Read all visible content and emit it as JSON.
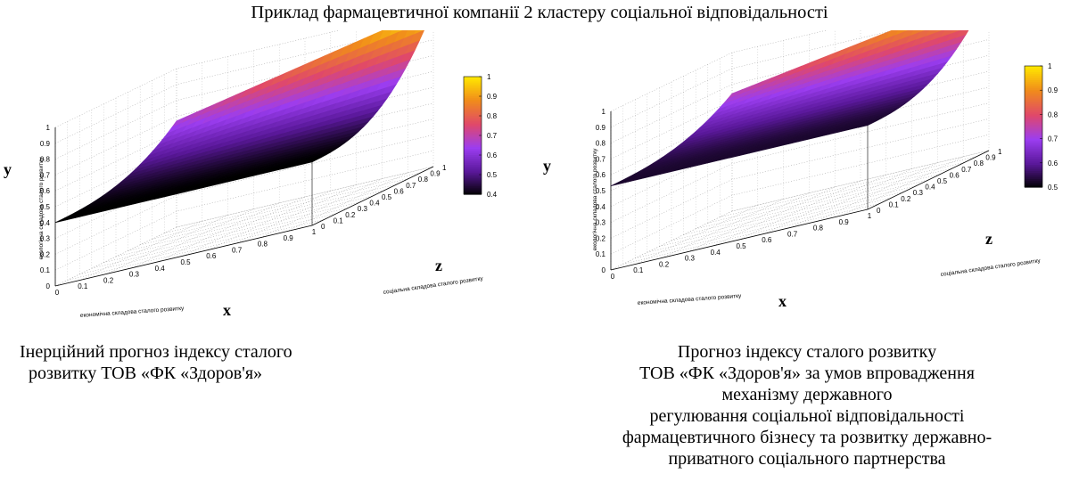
{
  "header": {
    "title": "Приклад фармацевтичної компанії 2 кластеру соціальної відповідальності"
  },
  "charts": [
    {
      "caption": [
        "Інерційний прогноз індексу сталого",
        "розвитку ТОВ «ФК «Здоров'я»"
      ]
    },
    {
      "caption": [
        "Прогноз індексу сталого розвитку",
        "ТОВ «ФК «Здоров'я» за умов впровадження",
        "механізму державного",
        "регулювання соціальної відповідальності",
        "фармацевтичного бізнесу та розвитку державно-",
        "приватного соціального партнерства"
      ]
    }
  ],
  "chart_data": [
    {
      "type": "surface",
      "axes": {
        "x": {
          "name": "x",
          "label": "економічна складова сталого розвитку",
          "ticks": [
            "0",
            "0.1",
            "0.2",
            "0.3",
            "0.4",
            "0.5",
            "0.6",
            "0.7",
            "0.8",
            "0.9",
            "1"
          ],
          "range": [
            0,
            1
          ]
        },
        "z": {
          "name": "z",
          "label": "соціальна складова сталого розвитку",
          "ticks": [
            "0",
            "0.1",
            "0.2",
            "0.3",
            "0.4",
            "0.5",
            "0.6",
            "0.7",
            "0.8",
            "0.9",
            "1"
          ],
          "range": [
            0,
            1
          ]
        },
        "y": {
          "name": "y",
          "label": "екологічна складова сталого розвитку",
          "ticks": [
            "0",
            "0.1",
            "0.2",
            "0.3",
            "0.4",
            "0.5",
            "0.6",
            "0.7",
            "0.8",
            "0.9",
            "1"
          ],
          "range": [
            0,
            1
          ]
        }
      },
      "surface": {
        "base_value": 0.4,
        "max_value": 1.0
      },
      "colorbar": {
        "ticks": [
          "1",
          "0.9",
          "0.8",
          "0.7",
          "0.6",
          "0.5",
          "0.4"
        ],
        "range": [
          0.4,
          1.0
        ]
      },
      "colormap": [
        "#000000",
        "#5a189a",
        "#9b3df0",
        "#e0486a",
        "#f08a1c",
        "#ffe600"
      ]
    },
    {
      "type": "surface",
      "axes": {
        "x": {
          "name": "x",
          "label": "економічна складова сталого розвитку",
          "ticks": [
            "0",
            "0.1",
            "0.2",
            "0.3",
            "0.4",
            "0.5",
            "0.6",
            "0.7",
            "0.8",
            "0.9",
            "1"
          ],
          "range": [
            0,
            1
          ]
        },
        "z": {
          "name": "z",
          "label": "соціальна складова сталого розвитку",
          "ticks": [
            "0",
            "0.1",
            "0.2",
            "0.3",
            "0.4",
            "0.5",
            "0.6",
            "0.7",
            "0.8",
            "0.9",
            "1"
          ],
          "range": [
            0,
            1
          ]
        },
        "y": {
          "name": "y",
          "label": "екологічна складова сталого розвитку",
          "ticks": [
            "0",
            "0.1",
            "0.2",
            "0.3",
            "0.4",
            "0.5",
            "0.6",
            "0.7",
            "0.8",
            "0.9",
            "1"
          ],
          "range": [
            0,
            1
          ]
        }
      },
      "surface": {
        "base_value": 0.53,
        "max_value": 1.0
      },
      "colorbar": {
        "ticks": [
          "1",
          "0.9",
          "0.8",
          "0.7",
          "0.6",
          "0.5"
        ],
        "range": [
          0.5,
          1.0
        ]
      },
      "colormap": [
        "#000000",
        "#5a189a",
        "#9b3df0",
        "#e0486a",
        "#f08a1c",
        "#ffe600"
      ]
    }
  ]
}
